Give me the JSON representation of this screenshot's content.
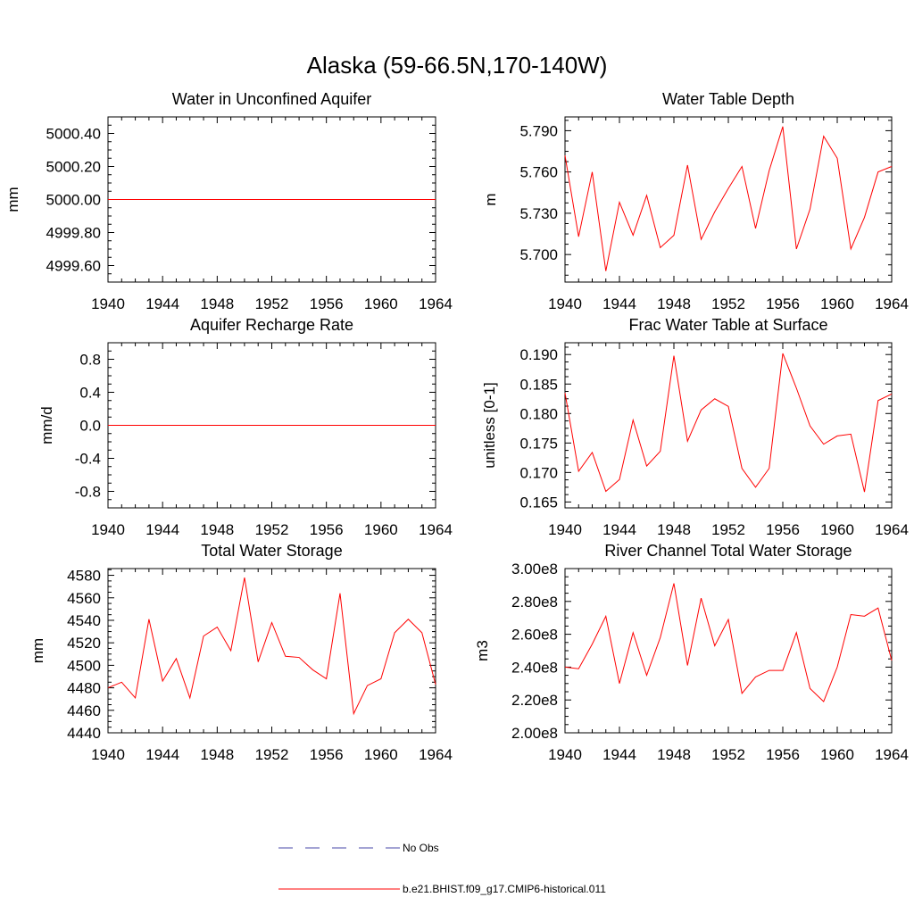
{
  "figure": {
    "title": "Alaska (59-66.5N,170-140W)"
  },
  "colors": {
    "model": "#ff0000",
    "obs": "#4a4aa8",
    "axis": "#000000"
  },
  "legend": {
    "entries": [
      {
        "label": "No Obs",
        "style": "dashed",
        "color": "#4a4aa8"
      },
      {
        "label": "b.e21.BHIST.f09_g17.CMIP6-historical.011",
        "style": "solid",
        "color": "#ff0000"
      }
    ]
  },
  "chart_data": [
    {
      "type": "line",
      "title": "Water in Unconfined Aquifer",
      "ylabel": "mm",
      "xlim": [
        1940,
        1964
      ],
      "ylim": [
        4999.5,
        5000.5
      ],
      "xticks": [
        1940,
        1944,
        1948,
        1952,
        1956,
        1960,
        1964
      ],
      "xtick_labels": [
        "1940",
        "1944",
        "1948",
        "1952",
        "1956",
        "1960",
        "1964"
      ],
      "yticks": [
        4999.6,
        4999.8,
        5000.0,
        5000.2,
        5000.4
      ],
      "ytick_labels": [
        "4999.60",
        "4999.80",
        "5000.00",
        "5000.20",
        "5000.40"
      ],
      "series": [
        {
          "x": [
            1940,
            1941,
            1942,
            1943,
            1944,
            1945,
            1946,
            1947,
            1948,
            1949,
            1950,
            1951,
            1952,
            1953,
            1954,
            1955,
            1956,
            1957,
            1958,
            1959,
            1960,
            1961,
            1962,
            1963,
            1964
          ],
          "values": [
            5000,
            5000,
            5000,
            5000,
            5000,
            5000,
            5000,
            5000,
            5000,
            5000,
            5000,
            5000,
            5000,
            5000,
            5000,
            5000,
            5000,
            5000,
            5000,
            5000,
            5000,
            5000,
            5000,
            5000,
            5000
          ]
        }
      ]
    },
    {
      "type": "line",
      "title": "Water Table Depth",
      "ylabel": "m",
      "xlim": [
        1940,
        1964
      ],
      "ylim": [
        5.68,
        5.8
      ],
      "xticks": [
        1940,
        1944,
        1948,
        1952,
        1956,
        1960,
        1964
      ],
      "xtick_labels": [
        "1940",
        "1944",
        "1948",
        "1952",
        "1956",
        "1960",
        "1964"
      ],
      "yticks": [
        5.7,
        5.73,
        5.76,
        5.79
      ],
      "ytick_labels": [
        "5.700",
        "5.730",
        "5.760",
        "5.790"
      ],
      "series": [
        {
          "x": [
            1940,
            1941,
            1942,
            1943,
            1944,
            1945,
            1946,
            1947,
            1948,
            1949,
            1950,
            1951,
            1952,
            1953,
            1954,
            1955,
            1956,
            1957,
            1958,
            1959,
            1960,
            1961,
            1962,
            1963,
            1964
          ],
          "values": [
            5.772,
            5.713,
            5.76,
            5.688,
            5.738,
            5.714,
            5.743,
            5.705,
            5.714,
            5.765,
            5.711,
            5.731,
            5.748,
            5.764,
            5.719,
            5.761,
            5.793,
            5.704,
            5.733,
            5.786,
            5.77,
            5.704,
            5.727,
            5.76,
            5.764
          ]
        }
      ]
    },
    {
      "type": "line",
      "title": "Aquifer Recharge Rate",
      "ylabel": "mm/d",
      "xlim": [
        1940,
        1964
      ],
      "ylim": [
        -1.0,
        1.0
      ],
      "xticks": [
        1940,
        1944,
        1948,
        1952,
        1956,
        1960,
        1964
      ],
      "xtick_labels": [
        "1940",
        "1944",
        "1948",
        "1952",
        "1956",
        "1960",
        "1964"
      ],
      "yticks": [
        -0.8,
        -0.4,
        0.0,
        0.4,
        0.8
      ],
      "ytick_labels": [
        "-0.8",
        "-0.4",
        "0.0",
        "0.4",
        "0.8"
      ],
      "series": [
        {
          "x": [
            1940,
            1941,
            1942,
            1943,
            1944,
            1945,
            1946,
            1947,
            1948,
            1949,
            1950,
            1951,
            1952,
            1953,
            1954,
            1955,
            1956,
            1957,
            1958,
            1959,
            1960,
            1961,
            1962,
            1963,
            1964
          ],
          "values": [
            0,
            0,
            0,
            0,
            0,
            0,
            0,
            0,
            0,
            0,
            0,
            0,
            0,
            0,
            0,
            0,
            0,
            0,
            0,
            0,
            0,
            0,
            0,
            0,
            0
          ]
        }
      ]
    },
    {
      "type": "line",
      "title": "Frac Water Table at Surface",
      "ylabel": "unitless [0-1]",
      "xlim": [
        1940,
        1964
      ],
      "ylim": [
        0.164,
        0.192
      ],
      "xticks": [
        1940,
        1944,
        1948,
        1952,
        1956,
        1960,
        1964
      ],
      "xtick_labels": [
        "1940",
        "1944",
        "1948",
        "1952",
        "1956",
        "1960",
        "1964"
      ],
      "yticks": [
        0.165,
        0.17,
        0.175,
        0.18,
        0.185,
        0.19
      ],
      "ytick_labels": [
        "0.165",
        "0.170",
        "0.175",
        "0.180",
        "0.185",
        "0.190"
      ],
      "series": [
        {
          "x": [
            1940,
            1941,
            1942,
            1943,
            1944,
            1945,
            1946,
            1947,
            1948,
            1949,
            1950,
            1951,
            1952,
            1953,
            1954,
            1955,
            1956,
            1957,
            1958,
            1959,
            1960,
            1961,
            1962,
            1963,
            1964
          ],
          "values": [
            0.1835,
            0.1702,
            0.1734,
            0.1668,
            0.1688,
            0.1789,
            0.1711,
            0.1736,
            0.1898,
            0.1753,
            0.1806,
            0.1825,
            0.1812,
            0.1707,
            0.1675,
            0.1707,
            0.1902,
            0.1843,
            0.1779,
            0.1748,
            0.1762,
            0.1765,
            0.1667,
            0.1822,
            0.1833
          ]
        }
      ]
    },
    {
      "type": "line",
      "title": "Total Water Storage",
      "ylabel": "mm",
      "xlim": [
        1940,
        1964
      ],
      "ylim": [
        4440,
        4586
      ],
      "xticks": [
        1940,
        1944,
        1948,
        1952,
        1956,
        1960,
        1964
      ],
      "xtick_labels": [
        "1940",
        "1944",
        "1948",
        "1952",
        "1956",
        "1960",
        "1964"
      ],
      "yticks": [
        4440,
        4460,
        4480,
        4500,
        4520,
        4540,
        4560,
        4580
      ],
      "ytick_labels": [
        "4440",
        "4460",
        "4480",
        "4500",
        "4520",
        "4540",
        "4560",
        "4580"
      ],
      "series": [
        {
          "x": [
            1940,
            1941,
            1942,
            1943,
            1944,
            1945,
            1946,
            1947,
            1948,
            1949,
            1950,
            1951,
            1952,
            1953,
            1954,
            1955,
            1956,
            1957,
            1958,
            1959,
            1960,
            1961,
            1962,
            1963,
            1964
          ],
          "values": [
            4480,
            4485,
            4471,
            4541,
            4486,
            4506,
            4471,
            4526,
            4534,
            4513,
            4578,
            4503,
            4538,
            4508,
            4507,
            4496,
            4488,
            4564,
            4457,
            4482,
            4488,
            4529,
            4541,
            4529,
            4483
          ]
        }
      ]
    },
    {
      "type": "line",
      "title": "River Channel Total Water Storage",
      "ylabel": "m3",
      "xlim": [
        1940,
        1964
      ],
      "ylim": [
        200000000.0,
        300000000.0
      ],
      "xticks": [
        1940,
        1944,
        1948,
        1952,
        1956,
        1960,
        1964
      ],
      "xtick_labels": [
        "1940",
        "1944",
        "1948",
        "1952",
        "1956",
        "1960",
        "1964"
      ],
      "yticks": [
        200000000.0,
        220000000.0,
        240000000.0,
        260000000.0,
        280000000.0,
        300000000.0
      ],
      "ytick_labels": [
        "2.00e8",
        "2.20e8",
        "2.40e8",
        "2.60e8",
        "2.80e8",
        "3.00e8"
      ],
      "series": [
        {
          "x": [
            1940,
            1941,
            1942,
            1943,
            1944,
            1945,
            1946,
            1947,
            1948,
            1949,
            1950,
            1951,
            1952,
            1953,
            1954,
            1955,
            1956,
            1957,
            1958,
            1959,
            1960,
            1961,
            1962,
            1963,
            1964
          ],
          "values": [
            240000000.0,
            239000000.0,
            254000000.0,
            271000000.0,
            230000000.0,
            261000000.0,
            235000000.0,
            258000000.0,
            291000000.0,
            241000000.0,
            282000000.0,
            253000000.0,
            269000000.0,
            224000000.0,
            234000000.0,
            238000000.0,
            238000000.0,
            261000000.0,
            227000000.0,
            219000000.0,
            240000000.0,
            272000000.0,
            271000000.0,
            276000000.0,
            244000000.0
          ]
        }
      ]
    }
  ]
}
